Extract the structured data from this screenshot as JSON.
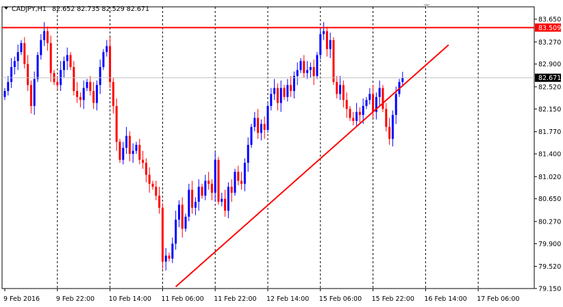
{
  "header": {
    "symbol": "CADJPY,H1",
    "ohlc": "82.652 82.735 82.529 82.671",
    "menu_icon": "triangle-down-icon",
    "scroll_marker_icon": "triangle-down-icon"
  },
  "colors": {
    "bull": "#0000ff",
    "bear": "#ff0000",
    "line": "#ff0000",
    "grid": "#000000",
    "bid_line": "#c0c0c0",
    "label_bg": "#ff0000",
    "label_text": "#ffffff"
  },
  "chart_data": {
    "type": "candlestick",
    "instrument": "CADJPY",
    "timeframe": "H1",
    "ylim": [
      79.15,
      83.65
    ],
    "y_ticks": [
      "83.650",
      "83.270",
      "82.900",
      "82.520",
      "82.150",
      "81.770",
      "81.400",
      "81.020",
      "80.650",
      "80.270",
      "79.900",
      "79.520",
      "79.150"
    ],
    "x_ticks": [
      "9 Feb 2016",
      "9 Feb 22:00",
      "10 Feb 14:00",
      "11 Feb 06:00",
      "11 Feb 22:00",
      "12 Feb 14:00",
      "15 Feb 06:00",
      "15 Feb 22:00",
      "16 Feb 14:00",
      "17 Feb 06:00"
    ],
    "x_tick_bars": [
      0,
      16,
      32,
      48,
      64,
      80,
      96,
      112,
      128,
      144
    ],
    "resistance_level": {
      "value": 83.509,
      "label": "83.509"
    },
    "current_price": {
      "value": 82.671,
      "label": "82.671"
    },
    "trendline": {
      "from": {
        "bar": 52,
        "price": 79.18
      },
      "to": {
        "bar": 135,
        "price": 83.22
      }
    },
    "closes": [
      82.45,
      82.6,
      82.85,
      82.95,
      83.1,
      83.25,
      82.9,
      82.55,
      82.2,
      82.65,
      83.05,
      83.3,
      83.45,
      83.25,
      82.75,
      82.6,
      82.55,
      82.8,
      82.95,
      83.05,
      82.85,
      82.45,
      82.35,
      82.3,
      82.5,
      82.6,
      82.45,
      82.25,
      82.55,
      82.85,
      83.1,
      83.2,
      82.6,
      82.2,
      81.6,
      81.3,
      81.5,
      81.7,
      81.4,
      81.45,
      81.55,
      81.3,
      81.25,
      81.05,
      80.9,
      80.85,
      80.7,
      80.5,
      79.6,
      79.7,
      79.65,
      79.9,
      80.3,
      80.55,
      80.15,
      80.35,
      80.8,
      80.5,
      80.6,
      80.85,
      80.7,
      80.95,
      80.9,
      80.75,
      81.3,
      80.6,
      80.65,
      80.45,
      80.85,
      80.75,
      81.1,
      80.95,
      80.9,
      81.25,
      81.55,
      81.85,
      82.0,
      81.75,
      81.9,
      81.8,
      82.2,
      82.4,
      82.5,
      82.25,
      82.5,
      82.35,
      82.55,
      82.45,
      82.7,
      82.8,
      82.95,
      82.75,
      82.8,
      82.85,
      82.7,
      83.05,
      83.4,
      83.45,
      83.15,
      83.3,
      82.6,
      82.4,
      82.55,
      82.3,
      82.15,
      82.0,
      81.95,
      82.1,
      82.05,
      82.2,
      82.3,
      82.4,
      82.1,
      82.35,
      82.5,
      82.15,
      81.85,
      81.65,
      82.05,
      82.4,
      82.6,
      82.671
    ]
  }
}
